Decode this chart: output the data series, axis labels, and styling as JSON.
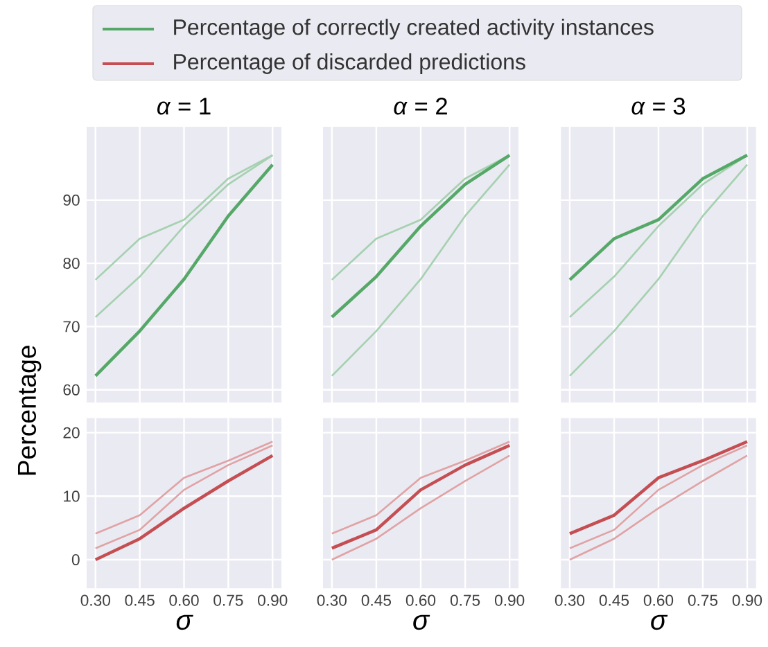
{
  "chart_data": [
    {
      "type": "line",
      "title": "*α* = 1",
      "ylabel": "Percentage",
      "x": [
        0.3,
        0.45,
        0.6,
        0.75,
        0.9
      ],
      "xlim": [
        0.27,
        0.93
      ],
      "ylim": [
        58,
        101.6
      ],
      "xticks": [
        {
          "value": 0.3,
          "label": null
        },
        {
          "value": 0.45,
          "label": null
        },
        {
          "value": 0.6,
          "label": null
        },
        {
          "value": 0.75,
          "label": null
        },
        {
          "value": 0.9,
          "label": null
        }
      ],
      "yticks": [
        60,
        70,
        80,
        90
      ],
      "grid": true,
      "tick_labels": "y",
      "legend": "top",
      "series": [
        {
          "color": "#a6d1b0",
          "values": [
            71.5,
            77.9,
            85.9,
            92.5,
            97.1
          ]
        },
        {
          "color": "#a6d1b0",
          "values": [
            77.4,
            83.9,
            86.9,
            93.4,
            97.1
          ]
        },
        {
          "name": "Percentage of correctly created activity instances",
          "color": "#55a868",
          "values": [
            62.2,
            69.3,
            77.5,
            87.5,
            95.6
          ]
        }
      ]
    },
    {
      "type": "line",
      "title": "*α* = 2",
      "x": [
        0.3,
        0.45,
        0.6,
        0.75,
        0.9
      ],
      "xlim": [
        0.27,
        0.93
      ],
      "ylim": [
        58,
        101.6
      ],
      "xticks": [
        {
          "value": 0.3,
          "label": null
        },
        {
          "value": 0.45,
          "label": null
        },
        {
          "value": 0.6,
          "label": null
        },
        {
          "value": 0.75,
          "label": null
        },
        {
          "value": 0.9,
          "label": null
        }
      ],
      "yticks": [
        60,
        70,
        80,
        90
      ],
      "grid": true,
      "tick_labels": false,
      "series": [
        {
          "color": "#a6d1b0",
          "values": [
            62.2,
            69.3,
            77.5,
            87.5,
            95.6
          ]
        },
        {
          "color": "#a6d1b0",
          "values": [
            77.4,
            83.9,
            86.9,
            93.4,
            97.1
          ]
        },
        {
          "color": "#55a868",
          "values": [
            71.5,
            77.9,
            85.9,
            92.5,
            97.1
          ]
        }
      ]
    },
    {
      "type": "line",
      "title": "*α* = 3",
      "x": [
        0.3,
        0.45,
        0.6,
        0.75,
        0.9
      ],
      "xlim": [
        0.27,
        0.93
      ],
      "ylim": [
        58,
        101.6
      ],
      "xticks": [
        {
          "value": 0.3,
          "label": null
        },
        {
          "value": 0.45,
          "label": null
        },
        {
          "value": 0.6,
          "label": null
        },
        {
          "value": 0.75,
          "label": null
        },
        {
          "value": 0.9,
          "label": null
        }
      ],
      "yticks": [
        60,
        70,
        80,
        90
      ],
      "grid": true,
      "tick_labels": false,
      "series": [
        {
          "color": "#a6d1b0",
          "values": [
            62.2,
            69.3,
            77.5,
            87.5,
            95.6
          ]
        },
        {
          "color": "#a6d1b0",
          "values": [
            71.5,
            77.9,
            85.9,
            92.5,
            97.1
          ]
        },
        {
          "color": "#55a868",
          "values": [
            77.4,
            83.9,
            86.9,
            93.4,
            97.1
          ]
        }
      ]
    },
    {
      "type": "line",
      "xlabel": "σ",
      "x": [
        0.3,
        0.45,
        0.6,
        0.75,
        0.9
      ],
      "xlim": [
        0.27,
        0.93
      ],
      "ylim": [
        -4.5,
        22.3
      ],
      "xticks": [
        {
          "value": 0.3,
          "label": "0.30"
        },
        {
          "value": 0.45,
          "label": "0.45"
        },
        {
          "value": 0.6,
          "label": "0.60"
        },
        {
          "value": 0.75,
          "label": "0.75"
        },
        {
          "value": 0.9,
          "label": "0.90"
        }
      ],
      "yticks": [
        0,
        10,
        20
      ],
      "grid": true,
      "legend": "top",
      "series": [
        {
          "color": "#e0a3a5",
          "values": [
            1.8,
            4.7,
            11.0,
            14.9,
            18.0
          ]
        },
        {
          "color": "#e0a3a5",
          "values": [
            4.1,
            7.0,
            12.9,
            15.6,
            18.6
          ]
        },
        {
          "name": "Percentage of discarded predictions",
          "color": "#c44e52",
          "values": [
            0,
            3.3,
            8.1,
            12.4,
            16.4
          ]
        }
      ]
    },
    {
      "type": "line",
      "xlabel": "σ",
      "x": [
        0.3,
        0.45,
        0.6,
        0.75,
        0.9
      ],
      "xlim": [
        0.27,
        0.93
      ],
      "ylim": [
        -4.5,
        22.3
      ],
      "xticks": [
        {
          "value": 0.3,
          "label": "0.30"
        },
        {
          "value": 0.45,
          "label": "0.45"
        },
        {
          "value": 0.6,
          "label": "0.60"
        },
        {
          "value": 0.75,
          "label": "0.75"
        },
        {
          "value": 0.9,
          "label": "0.90"
        }
      ],
      "yticks": [
        0,
        10,
        20
      ],
      "grid": true,
      "tick_labels": "x",
      "series": [
        {
          "color": "#e0a3a5",
          "values": [
            0,
            3.3,
            8.1,
            12.4,
            16.4
          ]
        },
        {
          "color": "#e0a3a5",
          "values": [
            4.1,
            7.0,
            12.9,
            15.6,
            18.6
          ]
        },
        {
          "color": "#c44e52",
          "values": [
            1.8,
            4.7,
            11.0,
            14.9,
            18.0
          ]
        }
      ]
    },
    {
      "type": "line",
      "xlabel": "σ",
      "x": [
        0.3,
        0.45,
        0.6,
        0.75,
        0.9
      ],
      "xlim": [
        0.27,
        0.93
      ],
      "ylim": [
        -4.5,
        22.3
      ],
      "xticks": [
        {
          "value": 0.3,
          "label": "0.30"
        },
        {
          "value": 0.45,
          "label": "0.45"
        },
        {
          "value": 0.6,
          "label": "0.60"
        },
        {
          "value": 0.75,
          "label": "0.75"
        },
        {
          "value": 0.9,
          "label": "0.90"
        }
      ],
      "yticks": [
        0,
        10,
        20
      ],
      "grid": true,
      "tick_labels": "x",
      "series": [
        {
          "color": "#e0a3a5",
          "values": [
            0,
            3.3,
            8.1,
            12.4,
            16.4
          ]
        },
        {
          "color": "#e0a3a5",
          "values": [
            1.8,
            4.7,
            11.0,
            14.9,
            18.0
          ]
        },
        {
          "color": "#c44e52",
          "values": [
            4.1,
            7.0,
            12.9,
            15.6,
            18.6
          ]
        }
      ]
    }
  ]
}
